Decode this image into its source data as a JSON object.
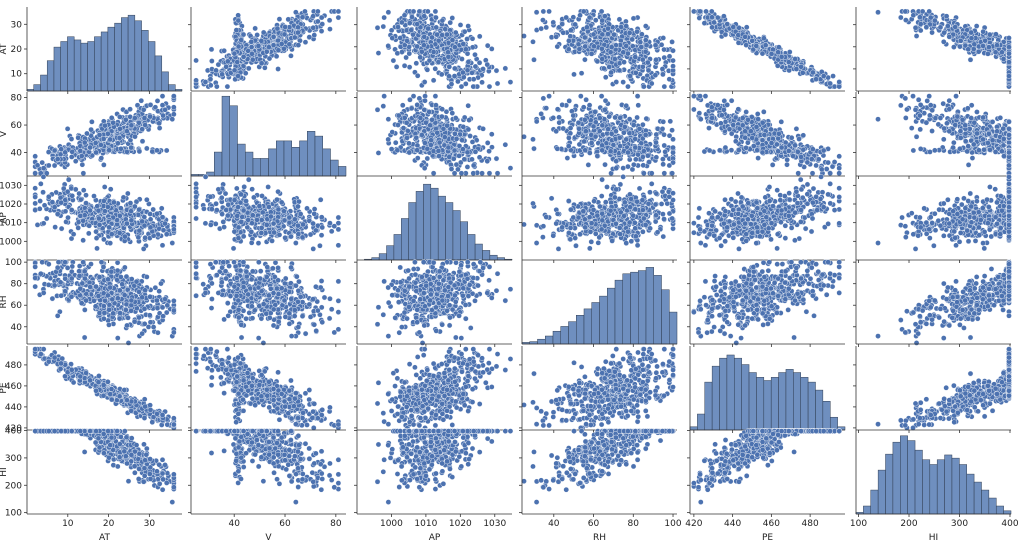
{
  "chart_data": {
    "type": "scatter",
    "subtype": "pairplot",
    "variables": [
      {
        "name": "AT",
        "range": [
          0,
          38
        ],
        "ticks": [
          10,
          20,
          30
        ],
        "hist_ymax": 1.0,
        "hist": [
          0.02,
          0.08,
          0.2,
          0.38,
          0.55,
          0.62,
          0.68,
          0.64,
          0.6,
          0.62,
          0.68,
          0.74,
          0.8,
          0.85,
          0.92,
          0.95,
          0.88,
          0.76,
          0.62,
          0.44,
          0.24,
          0.08,
          0.02
        ]
      },
      {
        "name": "V",
        "range": [
          23,
          84
        ],
        "ticks": [
          40,
          60,
          80
        ],
        "hist_ymax": 1.0,
        "hist": [
          0.02,
          0.02,
          0.05,
          0.3,
          1.0,
          0.88,
          0.4,
          0.3,
          0.22,
          0.22,
          0.34,
          0.44,
          0.44,
          0.36,
          0.44,
          0.56,
          0.5,
          0.34,
          0.2,
          0.12
        ]
      },
      {
        "name": "AP",
        "range": [
          990,
          1035
        ],
        "ticks": [
          1000,
          1010,
          1020,
          1030
        ],
        "hist_ymax": 1.0,
        "hist": [
          0.0,
          0.01,
          0.03,
          0.08,
          0.18,
          0.32,
          0.52,
          0.72,
          0.86,
          0.95,
          0.9,
          0.8,
          0.72,
          0.62,
          0.48,
          0.32,
          0.2,
          0.12,
          0.06,
          0.03,
          0.01
        ]
      },
      {
        "name": "RH",
        "range": [
          24,
          102
        ],
        "ticks": [
          40,
          60,
          80,
          100
        ],
        "hist_ymax": 1.0,
        "hist": [
          0.02,
          0.03,
          0.06,
          0.1,
          0.16,
          0.22,
          0.28,
          0.36,
          0.44,
          0.52,
          0.6,
          0.7,
          0.8,
          0.88,
          0.9,
          0.92,
          0.96,
          0.86,
          0.68,
          0.4
        ]
      },
      {
        "name": "PE",
        "range": [
          418,
          498
        ],
        "ticks": [
          420,
          440,
          460,
          480
        ],
        "hist_ymax": 1.0,
        "hist": [
          0.04,
          0.2,
          0.6,
          0.8,
          0.9,
          0.94,
          0.9,
          0.82,
          0.72,
          0.66,
          0.62,
          0.66,
          0.72,
          0.76,
          0.72,
          0.66,
          0.6,
          0.5,
          0.36,
          0.16,
          0.04
        ]
      },
      {
        "name": "HI",
        "range": [
          95,
          402
        ],
        "ticks": [
          100,
          200,
          300,
          400
        ],
        "hist_ymax": 1.0,
        "hist": [
          0.02,
          0.1,
          0.3,
          0.55,
          0.75,
          0.9,
          0.98,
          0.92,
          0.8,
          0.68,
          0.62,
          0.68,
          0.74,
          0.7,
          0.62,
          0.5,
          0.4,
          0.3,
          0.2,
          0.1,
          0.04
        ]
      }
    ],
    "diagonal": "histogram",
    "off_diagonal": "scatter",
    "marker_color": "#4c72b0",
    "marker_edge": "#ffffff",
    "hist_color": "#6f8fbf"
  }
}
